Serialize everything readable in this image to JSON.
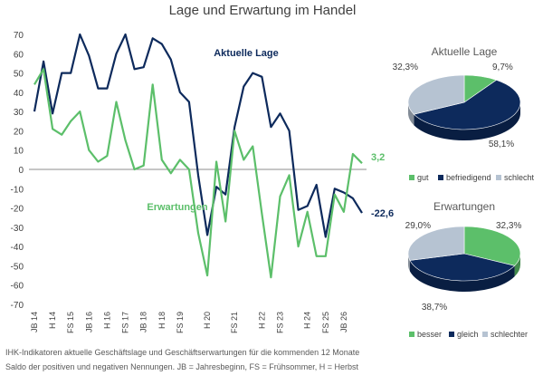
{
  "chart_data": [
    {
      "type": "line",
      "title": "Lage und Erwartung im Handel",
      "ylim": [
        -70,
        70
      ],
      "yticks": [
        70,
        60,
        50,
        40,
        30,
        20,
        10,
        0,
        -10,
        -20,
        -30,
        -40,
        -50,
        -60,
        -70
      ],
      "xtick_labels": [
        "JB 14",
        "H 14",
        "FS 15",
        "JB 16",
        "H 16",
        "FS 17",
        "JB 18",
        "H 18",
        "FS 19",
        "H 20",
        "FS 21",
        "H 22",
        "FS 23",
        "H 24",
        "FS 25",
        "JB 26"
      ],
      "xtick_positions": [
        0,
        2,
        4,
        6,
        8,
        10,
        12,
        14,
        16,
        19,
        22,
        25,
        27,
        30,
        32,
        34
      ],
      "series": [
        {
          "name": "Aktuelle Lage",
          "color": "#0d2a5c",
          "values": [
            30,
            56,
            29,
            50,
            50,
            70,
            59,
            42,
            42,
            60,
            70,
            52,
            53,
            68,
            65,
            57,
            40,
            35,
            -3,
            -34,
            -9,
            -13,
            22,
            43,
            50,
            48,
            22,
            29,
            20,
            -21,
            -19,
            -8,
            -35,
            -10,
            -12,
            -15,
            -22.6
          ],
          "end_label": "-22,6"
        },
        {
          "name": "Erwartungen",
          "color": "#5cbf6a",
          "values": [
            44,
            52,
            21,
            18,
            25,
            30,
            10,
            4,
            7,
            35,
            15,
            0,
            2,
            44,
            5,
            -2,
            5,
            0,
            -33,
            -55,
            4,
            -27,
            20,
            5,
            12,
            -23,
            -56,
            -14,
            -3,
            -40,
            -22,
            -45,
            -45,
            -13,
            -22,
            8,
            3.2
          ],
          "end_label": "3,2"
        }
      ]
    },
    {
      "type": "pie",
      "title": "Aktuelle Lage",
      "labels": [
        "gut",
        "befriedigend",
        "schlecht"
      ],
      "values": [
        9.7,
        58.1,
        32.3
      ],
      "value_labels": [
        "9,7%",
        "58,1%",
        "32,3%"
      ],
      "colors": [
        "#5cbf6a",
        "#0d2a5c",
        "#b6c3d2"
      ]
    },
    {
      "type": "pie",
      "title": "Erwartungen",
      "labels": [
        "besser",
        "gleich",
        "schlechter"
      ],
      "values": [
        32.3,
        38.7,
        29.0
      ],
      "value_labels": [
        "32,3%",
        "38,7%",
        "29,0%"
      ],
      "colors": [
        "#5cbf6a",
        "#0d2a5c",
        "#b6c3d2"
      ]
    }
  ],
  "footer": {
    "line1": "IHK-Indikatoren aktuelle Geschäftslage und Geschäftserwartungen für die kommenden 12 Monate",
    "line2": "Saldo der positiven und negativen Nennungen. JB = Jahresbeginn, FS = Frühsommer, H = Herbst"
  }
}
